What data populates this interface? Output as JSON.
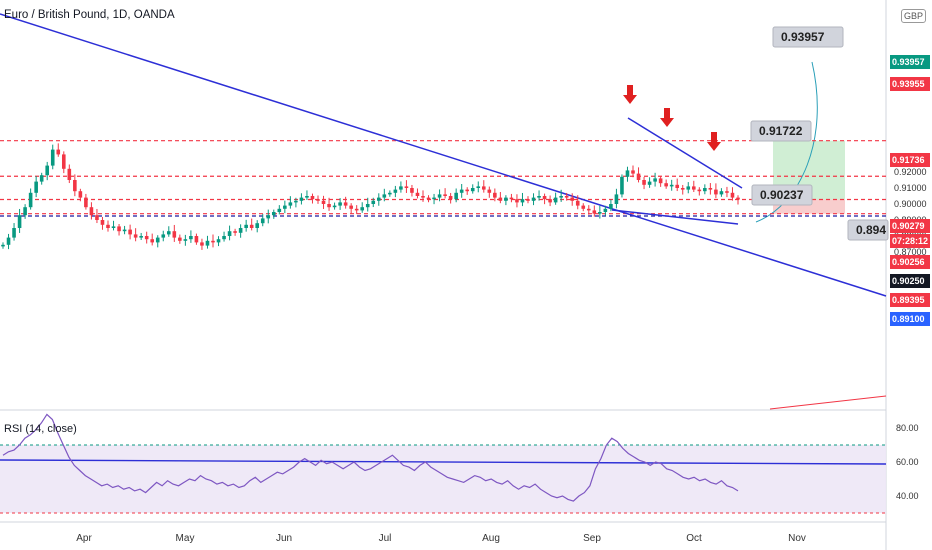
{
  "header": {
    "title": "Euro / British Pound, 1D, OANDA",
    "currency": "GBP"
  },
  "rsi": {
    "title": "RSI (14, close)",
    "levels": [
      70,
      30
    ],
    "ticks": [
      "80.00",
      "60.00",
      "40.00"
    ],
    "values": [
      64,
      66,
      67,
      70,
      74,
      76,
      79,
      83,
      88,
      85,
      77,
      70,
      63,
      58,
      55,
      52,
      50,
      48,
      46,
      47,
      45,
      46,
      44,
      45,
      43,
      44,
      42,
      45,
      48,
      46,
      49,
      47,
      46,
      48,
      50,
      49,
      52,
      50,
      49,
      47,
      48,
      46,
      47,
      45,
      46,
      49,
      51,
      48,
      50,
      52,
      54,
      53,
      55,
      57,
      60,
      62,
      60,
      58,
      61,
      59,
      60,
      58,
      56,
      58,
      60,
      57,
      55,
      56,
      58,
      60,
      62,
      64,
      61,
      58,
      57,
      55,
      58,
      60,
      57,
      55,
      53,
      51,
      50,
      49,
      48,
      50,
      52,
      51,
      49,
      50,
      48,
      47,
      49,
      46,
      44,
      46,
      45,
      47,
      44,
      42,
      40,
      39,
      40,
      38,
      37,
      40,
      42,
      46,
      56,
      62,
      70,
      74,
      72,
      68,
      65,
      63,
      61,
      60,
      58,
      60,
      59,
      56,
      55,
      53,
      51,
      50,
      51,
      49,
      50,
      48,
      47,
      49,
      46,
      45,
      43
    ]
  },
  "chart_data": {
    "type": "candlestick",
    "title": "Euro / British Pound, 1D, OANDA",
    "x_ticks": [
      "Apr",
      "May",
      "Jun",
      "Jul",
      "Aug",
      "Sep",
      "Oct",
      "Nov"
    ],
    "y_ticks": [
      "0.92000",
      "0.91000",
      "0.90000",
      "0.89000",
      "0.88000",
      "0.87000"
    ],
    "y_tick_values": [
      0.92,
      0.91,
      0.9,
      0.89,
      0.88,
      0.87
    ],
    "close": [
      0.8745,
      0.879,
      0.885,
      0.893,
      0.898,
      0.907,
      0.914,
      0.918,
      0.924,
      0.934,
      0.931,
      0.922,
      0.915,
      0.908,
      0.904,
      0.898,
      0.893,
      0.89,
      0.887,
      0.885,
      0.886,
      0.883,
      0.884,
      0.881,
      0.879,
      0.88,
      0.878,
      0.876,
      0.879,
      0.881,
      0.883,
      0.879,
      0.877,
      0.878,
      0.88,
      0.876,
      0.874,
      0.877,
      0.876,
      0.878,
      0.88,
      0.883,
      0.882,
      0.885,
      0.887,
      0.885,
      0.888,
      0.891,
      0.893,
      0.895,
      0.897,
      0.899,
      0.901,
      0.902,
      0.904,
      0.905,
      0.903,
      0.902,
      0.9,
      0.898,
      0.899,
      0.901,
      0.899,
      0.897,
      0.896,
      0.898,
      0.9,
      0.902,
      0.904,
      0.906,
      0.907,
      0.909,
      0.911,
      0.91,
      0.907,
      0.905,
      0.904,
      0.903,
      0.904,
      0.906,
      0.905,
      0.903,
      0.907,
      0.909,
      0.908,
      0.91,
      0.911,
      0.909,
      0.907,
      0.904,
      0.902,
      0.904,
      0.903,
      0.901,
      0.903,
      0.902,
      0.904,
      0.905,
      0.903,
      0.901,
      0.904,
      0.905,
      0.904,
      0.902,
      0.899,
      0.897,
      0.896,
      0.894,
      0.895,
      0.897,
      0.9,
      0.906,
      0.917,
      0.921,
      0.919,
      0.915,
      0.912,
      0.914,
      0.916,
      0.913,
      0.911,
      0.912,
      0.91,
      0.909,
      0.911,
      0.909,
      0.908,
      0.91,
      0.909,
      0.906,
      0.908,
      0.907,
      0.904,
      0.9028
    ]
  },
  "price_labels": [
    {
      "text": "0.93957",
      "color": "#089981"
    },
    {
      "text": "0.93955",
      "color": "#f23645"
    },
    {
      "text": "0.91736",
      "color": "#f23645"
    },
    {
      "text": "0.90279",
      "color": "#f23645"
    },
    {
      "text": "07:28:12",
      "color": "#f23645"
    },
    {
      "text": "0.90256",
      "color": "#f23645"
    },
    {
      "text": "0.90250",
      "color": "#131722"
    },
    {
      "text": "0.89395",
      "color": "#f23645"
    },
    {
      "text": "0.89100",
      "color": "#2962ff"
    }
  ],
  "callouts": [
    "0.93957",
    "0.91722",
    "0.90237",
    "0.894"
  ]
}
